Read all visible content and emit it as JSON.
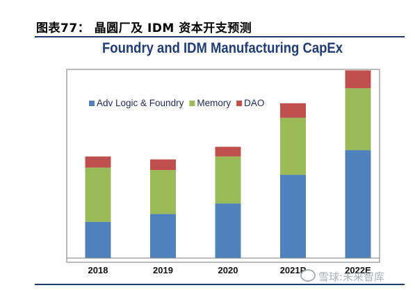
{
  "figure": {
    "caption": "图表77：   晶圆厂及 IDM 资本开支预测",
    "watermark": "雪球:未来智库"
  },
  "chart_data": {
    "type": "bar",
    "stacked": true,
    "title": "Foundry and IDM Manufacturing CapEx",
    "categories": [
      "2018",
      "2019",
      "2020",
      "2021P",
      "2022E"
    ],
    "series": [
      {
        "name": "Adv Logic & Foundry",
        "color": "#4f81bd",
        "values": [
          7.5,
          9.1,
          11.3,
          17.2,
          22.3
        ]
      },
      {
        "name": "Memory",
        "color": "#9bbb59",
        "values": [
          11.2,
          9.1,
          9.7,
          11.8,
          12.8
        ]
      },
      {
        "name": "DAO",
        "color": "#c0504d",
        "values": [
          2.3,
          2.2,
          2.0,
          3.0,
          3.7
        ]
      }
    ],
    "ylim": [
      0,
      39
    ],
    "xlabel": "",
    "ylabel": "",
    "grid": false,
    "legend": "top-left"
  },
  "colors": {
    "plot_border": "#a6a6a6",
    "plot_background": "#ffffff",
    "axis": "#7f7f7f"
  }
}
